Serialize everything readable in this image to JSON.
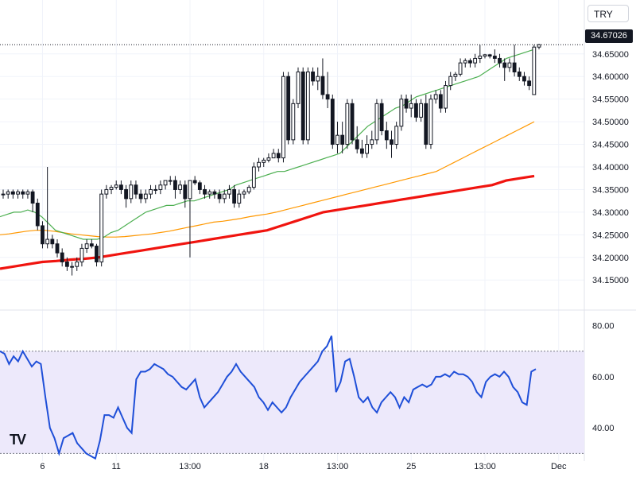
{
  "header": {
    "currency_label": "TRY",
    "last_price_label": "34.67026"
  },
  "logo_text": "TV",
  "colors": {
    "candle": "#131722",
    "ma_fast": "#4caf50",
    "ma_mid": "#ff9800",
    "ma_slow": "#f0140f",
    "rsi_line": "#1f4fd8",
    "rsi_band": "#ede9fb",
    "grid": "#f0f3fa"
  },
  "chart_data": [
    {
      "type": "candlestick",
      "ylim": [
        34.11,
        34.69
      ],
      "yticks": [
        "34.65000",
        "34.60000",
        "34.55000",
        "34.50000",
        "34.45000",
        "34.40000",
        "34.35000",
        "34.30000",
        "34.25000",
        "34.20000",
        "34.15000"
      ],
      "xtick_labels": [
        {
          "label": "6",
          "i": 8
        },
        {
          "label": "11",
          "i": 23
        },
        {
          "label": "13:00",
          "i": 38
        },
        {
          "label": "18",
          "i": 53
        },
        {
          "label": "13:00",
          "i": 68
        },
        {
          "label": "25",
          "i": 83
        },
        {
          "label": "13:00",
          "i": 98
        },
        {
          "label": "Dec",
          "i": 113
        }
      ],
      "last_price": 34.67026,
      "ohlc": [
        [
          34.34,
          34.35,
          34.33,
          34.34
        ],
        [
          34.34,
          34.35,
          34.33,
          34.345
        ],
        [
          34.345,
          34.35,
          34.33,
          34.34
        ],
        [
          34.34,
          34.35,
          34.33,
          34.345
        ],
        [
          34.345,
          34.35,
          34.33,
          34.34
        ],
        [
          34.34,
          34.35,
          34.33,
          34.345
        ],
        [
          34.345,
          34.35,
          34.3,
          34.32
        ],
        [
          34.32,
          34.33,
          34.26,
          34.27
        ],
        [
          34.27,
          34.28,
          34.22,
          34.23
        ],
        [
          34.23,
          34.4,
          34.22,
          34.24
        ],
        [
          34.24,
          34.25,
          34.22,
          34.23
        ],
        [
          34.23,
          34.24,
          34.2,
          34.21
        ],
        [
          34.21,
          34.22,
          34.18,
          34.19
        ],
        [
          34.19,
          34.2,
          34.17,
          34.18
        ],
        [
          34.18,
          34.19,
          34.16,
          34.18
        ],
        [
          34.18,
          34.2,
          34.17,
          34.19
        ],
        [
          34.19,
          34.23,
          34.18,
          34.22
        ],
        [
          34.22,
          34.24,
          34.21,
          34.23
        ],
        [
          34.23,
          34.24,
          34.22,
          34.225
        ],
        [
          34.225,
          34.23,
          34.18,
          34.19
        ],
        [
          34.19,
          34.35,
          34.18,
          34.34
        ],
        [
          34.34,
          34.36,
          34.33,
          34.35
        ],
        [
          34.35,
          34.36,
          34.34,
          34.355
        ],
        [
          34.355,
          34.37,
          34.35,
          34.36
        ],
        [
          34.36,
          34.37,
          34.34,
          34.35
        ],
        [
          34.35,
          34.36,
          34.31,
          34.33
        ],
        [
          34.33,
          34.37,
          34.32,
          34.36
        ],
        [
          34.36,
          34.37,
          34.33,
          34.34
        ],
        [
          34.34,
          34.35,
          34.32,
          34.33
        ],
        [
          34.33,
          34.35,
          34.32,
          34.34
        ],
        [
          34.34,
          34.36,
          34.33,
          34.35
        ],
        [
          34.35,
          34.36,
          34.34,
          34.35
        ],
        [
          34.35,
          34.37,
          34.34,
          34.36
        ],
        [
          34.36,
          34.37,
          34.35,
          34.37
        ],
        [
          34.37,
          34.38,
          34.36,
          34.37
        ],
        [
          34.37,
          34.38,
          34.33,
          34.35
        ],
        [
          34.35,
          34.37,
          34.34,
          34.36
        ],
        [
          34.36,
          34.37,
          34.31,
          34.33
        ],
        [
          34.33,
          34.37,
          34.2,
          34.37
        ],
        [
          34.37,
          34.38,
          34.36,
          34.365
        ],
        [
          34.365,
          34.37,
          34.34,
          34.35
        ],
        [
          34.35,
          34.36,
          34.33,
          34.34
        ],
        [
          34.34,
          34.35,
          34.33,
          34.345
        ],
        [
          34.345,
          34.35,
          34.33,
          34.34
        ],
        [
          34.34,
          34.35,
          34.32,
          34.33
        ],
        [
          34.33,
          34.35,
          34.32,
          34.34
        ],
        [
          34.34,
          34.36,
          34.33,
          34.35
        ],
        [
          34.35,
          34.36,
          34.31,
          34.32
        ],
        [
          34.32,
          34.35,
          34.31,
          34.34
        ],
        [
          34.34,
          34.35,
          34.33,
          34.345
        ],
        [
          34.345,
          34.36,
          34.34,
          34.355
        ],
        [
          34.355,
          34.41,
          34.35,
          34.4
        ],
        [
          34.4,
          34.42,
          34.39,
          34.41
        ],
        [
          34.41,
          34.42,
          34.4,
          34.415
        ],
        [
          34.415,
          34.43,
          34.41,
          34.42
        ],
        [
          34.42,
          34.44,
          34.42,
          34.43
        ],
        [
          34.43,
          34.44,
          34.41,
          34.42
        ],
        [
          34.42,
          34.61,
          34.41,
          34.6
        ],
        [
          34.6,
          34.61,
          34.45,
          34.46
        ],
        [
          34.46,
          34.55,
          34.45,
          34.54
        ],
        [
          34.54,
          34.62,
          34.53,
          34.61
        ],
        [
          34.61,
          34.62,
          34.45,
          34.46
        ],
        [
          34.46,
          34.62,
          34.45,
          34.61
        ],
        [
          34.61,
          34.62,
          34.58,
          34.59
        ],
        [
          34.59,
          34.62,
          34.57,
          34.6
        ],
        [
          34.6,
          34.64,
          34.55,
          34.56
        ],
        [
          34.56,
          34.61,
          34.53,
          34.55
        ],
        [
          34.55,
          34.56,
          34.44,
          34.45
        ],
        [
          34.45,
          34.5,
          34.43,
          34.47
        ],
        [
          34.47,
          34.5,
          34.43,
          34.45
        ],
        [
          34.45,
          34.55,
          34.44,
          34.54
        ],
        [
          34.54,
          34.55,
          34.45,
          34.46
        ],
        [
          34.46,
          34.49,
          34.43,
          34.44
        ],
        [
          34.44,
          34.46,
          34.42,
          34.43
        ],
        [
          34.43,
          34.47,
          34.42,
          34.45
        ],
        [
          34.45,
          34.48,
          34.44,
          34.46
        ],
        [
          34.46,
          34.55,
          34.45,
          34.54
        ],
        [
          34.54,
          34.55,
          34.47,
          34.48
        ],
        [
          34.48,
          34.5,
          34.44,
          34.46
        ],
        [
          34.46,
          34.48,
          34.42,
          34.45
        ],
        [
          34.45,
          34.5,
          34.44,
          34.49
        ],
        [
          34.49,
          34.56,
          34.48,
          34.55
        ],
        [
          34.55,
          34.56,
          34.52,
          34.53
        ],
        [
          34.53,
          34.56,
          34.51,
          34.54
        ],
        [
          34.54,
          34.55,
          34.5,
          34.51
        ],
        [
          34.51,
          34.55,
          34.5,
          34.54
        ],
        [
          34.54,
          34.56,
          34.44,
          34.45
        ],
        [
          34.45,
          34.56,
          34.44,
          34.55
        ],
        [
          34.55,
          34.57,
          34.54,
          34.56
        ],
        [
          34.56,
          34.57,
          34.52,
          34.53
        ],
        [
          34.53,
          34.59,
          34.52,
          34.58
        ],
        [
          34.58,
          34.61,
          34.57,
          34.6
        ],
        [
          34.6,
          34.61,
          34.59,
          34.605
        ],
        [
          34.605,
          34.64,
          34.6,
          34.63
        ],
        [
          34.63,
          34.64,
          34.62,
          34.635
        ],
        [
          34.635,
          34.64,
          34.62,
          34.63
        ],
        [
          34.63,
          34.65,
          34.62,
          34.64
        ],
        [
          34.64,
          34.67,
          34.63,
          34.645
        ],
        [
          34.645,
          34.65,
          34.64,
          34.648
        ],
        [
          34.648,
          34.65,
          34.64,
          34.645
        ],
        [
          34.645,
          34.66,
          34.63,
          34.64
        ],
        [
          34.64,
          34.65,
          34.62,
          34.63
        ],
        [
          34.63,
          34.64,
          34.59,
          34.62
        ],
        [
          34.62,
          34.64,
          34.61,
          34.63
        ],
        [
          34.63,
          34.67,
          34.6,
          34.61
        ],
        [
          34.61,
          34.62,
          34.59,
          34.6
        ],
        [
          34.6,
          34.61,
          34.58,
          34.59
        ],
        [
          34.59,
          34.6,
          34.57,
          34.58
        ],
        [
          34.56,
          34.67,
          34.56,
          34.665
        ],
        [
          34.665,
          34.672,
          34.66,
          34.67026
        ]
      ],
      "ma_fast": [
        34.29,
        34.295,
        34.3,
        34.3,
        34.305,
        34.3,
        34.29,
        34.275,
        34.26,
        34.255,
        34.25,
        34.245,
        34.24,
        34.24,
        34.24,
        34.245,
        34.255,
        34.26,
        34.27,
        34.28,
        34.29,
        34.3,
        34.305,
        34.31,
        34.315,
        34.315,
        34.32,
        34.325,
        34.325,
        34.33,
        34.335,
        34.34,
        34.345,
        34.35,
        34.36,
        34.365,
        34.37,
        34.375,
        34.38,
        34.385,
        34.39,
        34.39,
        34.395,
        34.4,
        34.405,
        34.41,
        34.415,
        34.42,
        34.425,
        34.43,
        34.445,
        34.46,
        34.475,
        34.49,
        34.5,
        34.51,
        34.52,
        34.53,
        34.535,
        34.545,
        34.555,
        34.56,
        34.565,
        34.57,
        34.575,
        34.58,
        34.585,
        34.59,
        34.595,
        34.6,
        34.61,
        34.62,
        34.63,
        34.64,
        34.645,
        34.65,
        34.655,
        34.66
      ],
      "ma_mid": [
        34.25,
        34.252,
        34.255,
        34.258,
        34.26,
        34.26,
        34.258,
        34.255,
        34.252,
        34.25,
        34.248,
        34.246,
        34.245,
        34.245,
        34.246,
        34.248,
        34.25,
        34.252,
        34.255,
        34.258,
        34.262,
        34.266,
        34.27,
        34.274,
        34.278,
        34.28,
        34.283,
        34.286,
        34.29,
        34.293,
        34.296,
        34.3,
        34.305,
        34.31,
        34.315,
        34.32,
        34.325,
        34.33,
        34.335,
        34.34,
        34.345,
        34.35,
        34.355,
        34.36,
        34.365,
        34.37,
        34.375,
        34.38,
        34.385,
        34.39,
        34.4,
        34.41,
        34.42,
        34.43,
        34.44,
        34.45,
        34.46,
        34.47,
        34.48,
        34.49,
        34.5
      ],
      "ma_slow": [
        34.175,
        34.18,
        34.185,
        34.19,
        34.192,
        34.195,
        34.197,
        34.2,
        34.205,
        34.21,
        34.215,
        34.22,
        34.225,
        34.23,
        34.235,
        34.24,
        34.245,
        34.25,
        34.255,
        34.26,
        34.27,
        34.28,
        34.29,
        34.3,
        34.305,
        34.31,
        34.315,
        34.32,
        34.325,
        34.33,
        34.335,
        34.34,
        34.345,
        34.35,
        34.355,
        34.36,
        34.37,
        34.375,
        34.38
      ]
    },
    {
      "type": "line",
      "ylim": [
        27,
        83
      ],
      "yticks": [
        "80.00",
        "60.00",
        "40.00"
      ],
      "band": [
        30,
        70
      ],
      "values": [
        70,
        69,
        65,
        68,
        66,
        70,
        67,
        64,
        66,
        65,
        52,
        40,
        36,
        30,
        36,
        37,
        38,
        34,
        32,
        30,
        29,
        28,
        35,
        45,
        45,
        44,
        48,
        44,
        40,
        38,
        59,
        62,
        62,
        63,
        65,
        64,
        63,
        61,
        60,
        58,
        56,
        55,
        57,
        59,
        52,
        48,
        50,
        52,
        54,
        57,
        60,
        62,
        65,
        62,
        60,
        58,
        56,
        52,
        50,
        47,
        50,
        48,
        46,
        48,
        52,
        55,
        58,
        60,
        62,
        64,
        66,
        70,
        72,
        76,
        54,
        58,
        66,
        67,
        60,
        52,
        50,
        52,
        48,
        46,
        50,
        52,
        54,
        52,
        48,
        52,
        50,
        55,
        56,
        57,
        56,
        57,
        60,
        60,
        61,
        60,
        62,
        61,
        61,
        60,
        58,
        54,
        52,
        58,
        60,
        61,
        60,
        62,
        60,
        56,
        54,
        50,
        49,
        62,
        63
      ]
    }
  ]
}
